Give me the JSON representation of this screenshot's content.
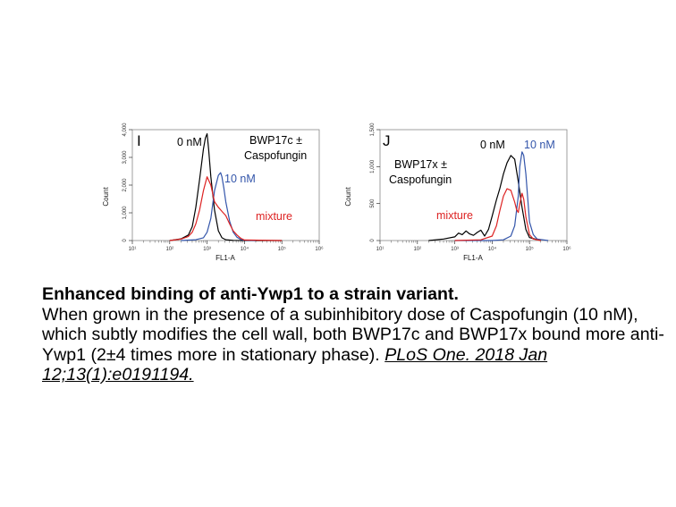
{
  "chart_data": [
    {
      "type": "line",
      "panel": "I",
      "xlabel": "FL1-A",
      "ylabel": "Count",
      "xscale": "log",
      "xlim": [
        10,
        1000000
      ],
      "ylim": [
        0,
        4000
      ],
      "xtick_labels": [
        "10¹",
        "10²",
        "10³",
        "10⁴",
        "10⁵",
        "10⁶"
      ],
      "ytick_labels": [
        "0",
        "1,000",
        "2,000",
        "3,000",
        "4,000"
      ],
      "yticks": [
        0,
        1000,
        2000,
        3000,
        4000
      ],
      "annotations": [
        "BWP17c ±",
        "Caspofungin"
      ],
      "series": [
        {
          "name": "0 nM",
          "color": "#000000",
          "x": [
            100,
            200,
            316,
            400,
            500,
            630,
            800,
            900,
            1000,
            1100,
            1260,
            1580,
            2000,
            2500,
            3160,
            5000,
            10000,
            100000
          ],
          "y": [
            0,
            60,
            200,
            500,
            1200,
            2200,
            3300,
            3700,
            3850,
            3300,
            2300,
            1100,
            350,
            100,
            30,
            5,
            0,
            0
          ]
        },
        {
          "name": "10 nM",
          "color": "#3355aa",
          "x": [
            200,
            500,
            800,
            1000,
            1260,
            1580,
            2000,
            2300,
            2500,
            2800,
            3160,
            4000,
            5000,
            6300,
            8000,
            10000,
            20000
          ],
          "y": [
            0,
            30,
            100,
            300,
            800,
            1800,
            2350,
            2450,
            2300,
            1900,
            1400,
            700,
            300,
            120,
            40,
            10,
            0
          ]
        },
        {
          "name": "mixture",
          "color": "#dd2222",
          "x": [
            100,
            200,
            316,
            400,
            500,
            630,
            800,
            1000,
            1260,
            1580,
            2000,
            2500,
            3160,
            4000,
            5000,
            6300,
            8000,
            10000,
            100000
          ],
          "y": [
            0,
            50,
            150,
            300,
            600,
            1100,
            1800,
            2300,
            2000,
            1400,
            1200,
            1050,
            900,
            600,
            350,
            200,
            80,
            20,
            0
          ]
        }
      ]
    },
    {
      "type": "line",
      "panel": "J",
      "xlabel": "FL1-A",
      "ylabel": "Count",
      "xscale": "log",
      "xlim": [
        10,
        1000000
      ],
      "ylim": [
        0,
        1500
      ],
      "xtick_labels": [
        "10¹",
        "10²",
        "10³",
        "10⁴",
        "10⁵",
        "10⁶"
      ],
      "ytick_labels": [
        "0",
        "500",
        "1,000",
        "1,500"
      ],
      "yticks": [
        0,
        500,
        1000,
        1500
      ],
      "annotations": [
        "BWP17x ±",
        "Caspofungin"
      ],
      "series": [
        {
          "name": "0 nM",
          "color": "#000000",
          "x": [
            200,
            500,
            1000,
            1260,
            1580,
            2000,
            2500,
            3160,
            4000,
            5000,
            6300,
            8000,
            10000,
            13000,
            16000,
            20000,
            25000,
            31600,
            40000,
            50000,
            63000,
            80000,
            100000,
            200000
          ],
          "y": [
            0,
            20,
            50,
            100,
            80,
            130,
            90,
            70,
            110,
            140,
            60,
            150,
            330,
            550,
            700,
            900,
            1050,
            1150,
            1100,
            800,
            450,
            150,
            40,
            0
          ]
        },
        {
          "name": "10 nM",
          "color": "#3355aa",
          "x": [
            1000,
            10000,
            20000,
            31600,
            40000,
            50000,
            55000,
            63000,
            70000,
            80000,
            90000,
            100000,
            126000,
            160000,
            316000
          ],
          "y": [
            0,
            0,
            10,
            60,
            200,
            600,
            1000,
            1200,
            1150,
            900,
            550,
            250,
            80,
            20,
            0
          ]
        },
        {
          "name": "mixture",
          "color": "#dd2222",
          "x": [
            1000,
            5000,
            10000,
            13000,
            16000,
            20000,
            25000,
            31600,
            40000,
            45000,
            50000,
            56000,
            63000,
            70000,
            80000,
            100000,
            126000,
            200000
          ],
          "y": [
            0,
            10,
            60,
            200,
            400,
            600,
            700,
            680,
            520,
            420,
            380,
            520,
            640,
            560,
            320,
            80,
            20,
            0
          ]
        }
      ]
    }
  ],
  "caption": {
    "title": "Enhanced binding of anti-Ywp1 to a strain variant.",
    "body": "When grown in the presence of a subinhibitory dose of Caspofungin (10 nM), which subtly modifies the cell wall, both BWP17c and BWP17x bound more anti-Ywp1 (2±4 times more in stationary phase). ",
    "citation": "PLoS One. 2018 Jan 12;13(1):e0191194."
  }
}
